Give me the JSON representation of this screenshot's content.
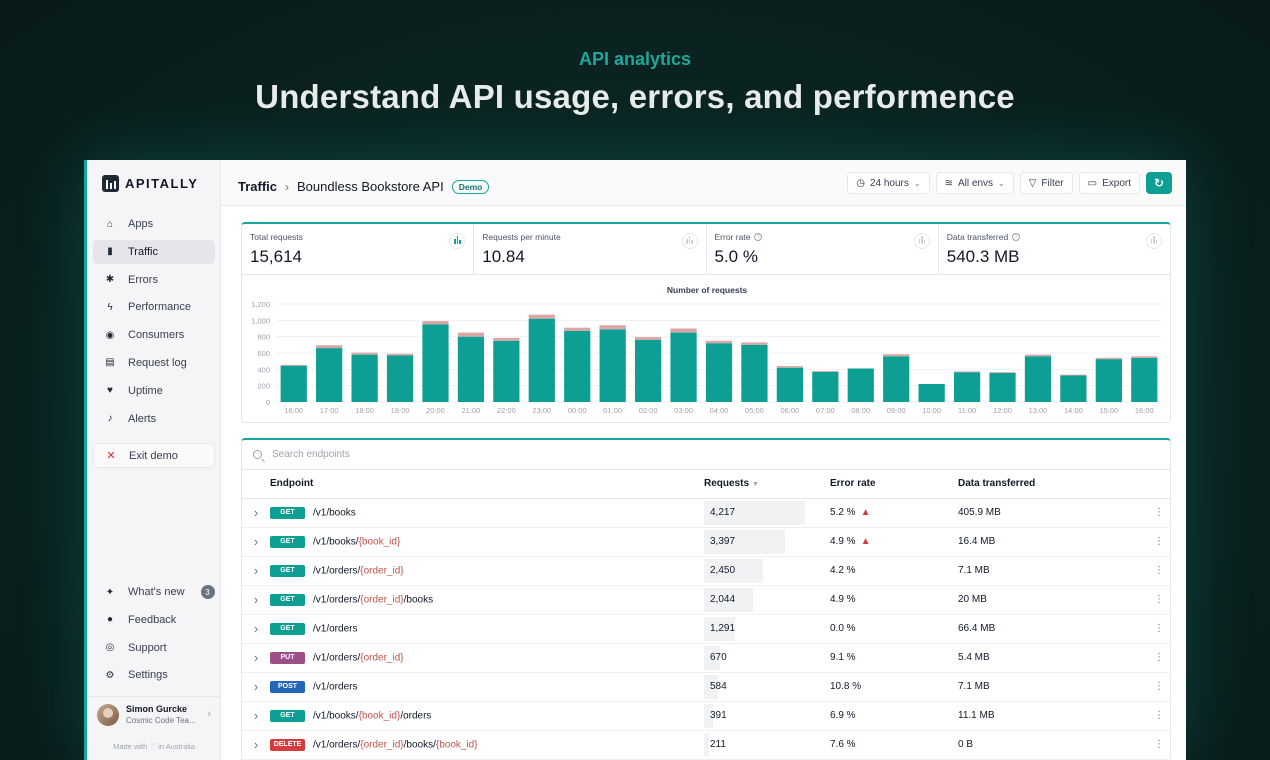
{
  "hero": {
    "kicker": "API analytics",
    "title": "Understand API usage, errors, and performence"
  },
  "sidebar": {
    "logo_text": "APITALLY",
    "items": [
      {
        "label": "Apps",
        "icon": "home-icon",
        "glyph": "⌂",
        "active": false
      },
      {
        "label": "Traffic",
        "icon": "bar-chart-icon",
        "glyph": "▮",
        "active": true
      },
      {
        "label": "Errors",
        "icon": "bug-icon",
        "glyph": "✱",
        "active": false
      },
      {
        "label": "Performance",
        "icon": "bolt-icon",
        "glyph": "ϟ",
        "active": false
      },
      {
        "label": "Consumers",
        "icon": "fingerprint-icon",
        "glyph": "◉",
        "active": false
      },
      {
        "label": "Request log",
        "icon": "scroll-icon",
        "glyph": "▤",
        "active": false
      },
      {
        "label": "Uptime",
        "icon": "heartbeat-icon",
        "glyph": "♥",
        "active": false
      },
      {
        "label": "Alerts",
        "icon": "bell-icon",
        "glyph": "♪",
        "active": false
      }
    ],
    "exit_label": "Exit demo",
    "bottom_items": [
      {
        "label": "What's new",
        "icon": "sparkles-icon",
        "glyph": "✦",
        "badge": "3"
      },
      {
        "label": "Feedback",
        "icon": "chat-icon",
        "glyph": "●",
        "badge": ""
      },
      {
        "label": "Support",
        "icon": "lifebuoy-icon",
        "glyph": "◎",
        "badge": ""
      },
      {
        "label": "Settings",
        "icon": "gear-icon",
        "glyph": "⚙",
        "badge": ""
      }
    ],
    "user_name": "Simon Gurcke",
    "user_team": "Cosmic Code Tea...",
    "made_with": "Made with ♡ in Australia"
  },
  "header": {
    "breadcrumb_root": "Traffic",
    "breadcrumb_sep": "›",
    "app_name": "Boundless Bookstore API",
    "demo_badge": "Demo",
    "period_label": "24 hours",
    "env_label": "All envs",
    "filter_label": "Filter",
    "export_label": "Export"
  },
  "metrics": [
    {
      "label": "Total requests",
      "value": "15,614",
      "info": false,
      "active": true
    },
    {
      "label": "Requests per minute",
      "value": "10.84",
      "info": false,
      "active": false
    },
    {
      "label": "Error rate",
      "value": "5.0 %",
      "info": true,
      "active": false
    },
    {
      "label": "Data transferred",
      "value": "540.3 MB",
      "info": true,
      "active": false
    }
  ],
  "chart_data": {
    "type": "bar",
    "title": "Number of requests",
    "categories": [
      "16:00",
      "17:00",
      "18:00",
      "19:00",
      "20:00",
      "21:00",
      "22:00",
      "23:00",
      "00:00",
      "01:00",
      "02:00",
      "03:00",
      "04:00",
      "05:00",
      "06:00",
      "07:00",
      "08:00",
      "09:00",
      "10:00",
      "11:00",
      "12:00",
      "13:00",
      "14:00",
      "15:00",
      "16:00"
    ],
    "series": [
      {
        "values": [
          445,
          660,
          580,
          570,
          950,
          800,
          750,
          1020,
          870,
          890,
          760,
          850,
          720,
          700,
          420,
          370,
          410,
          560,
          220,
          365,
          355,
          560,
          325,
          525,
          540
        ]
      },
      {
        "values": [
          10,
          35,
          25,
          20,
          40,
          50,
          35,
          50,
          40,
          50,
          35,
          50,
          30,
          30,
          20,
          10,
          0,
          25,
          0,
          10,
          10,
          20,
          10,
          15,
          20
        ]
      }
    ],
    "colors": [
      "#0e9f94",
      "#d9a5a5"
    ],
    "stacked": true,
    "ylim": [
      0,
      1200
    ],
    "yticks": [
      0,
      200,
      400,
      600,
      800,
      1000,
      1200
    ],
    "ytick_labels": [
      "0",
      "200",
      "400",
      "600",
      "800",
      "1,000",
      "1,200"
    ],
    "grid": true
  },
  "endpoints": {
    "search_placeholder": "Search endpoints",
    "columns": {
      "endpoint": "Endpoint",
      "requests": "Requests",
      "error_rate": "Error rate",
      "data": "Data transferred"
    },
    "max_requests": 4217,
    "rows": [
      {
        "method": "GET",
        "path": [
          [
            "/v1/books",
            false
          ]
        ],
        "requests": "4,217",
        "req_num": 4217,
        "error_rate": "5.2 %",
        "warn": true,
        "data": "405.9 MB"
      },
      {
        "method": "GET",
        "path": [
          [
            "/v1/books/",
            false
          ],
          [
            "{book_id}",
            true
          ]
        ],
        "requests": "3,397",
        "req_num": 3397,
        "error_rate": "4.9 %",
        "warn": true,
        "data": "16.4 MB"
      },
      {
        "method": "GET",
        "path": [
          [
            "/v1/orders/",
            false
          ],
          [
            "{order_id}",
            true
          ]
        ],
        "requests": "2,450",
        "req_num": 2450,
        "error_rate": "4.2 %",
        "warn": false,
        "data": "7.1 MB"
      },
      {
        "method": "GET",
        "path": [
          [
            "/v1/orders/",
            false
          ],
          [
            "{order_id}",
            true
          ],
          [
            "/books",
            false
          ]
        ],
        "requests": "2,044",
        "req_num": 2044,
        "error_rate": "4.9 %",
        "warn": false,
        "data": "20 MB"
      },
      {
        "method": "GET",
        "path": [
          [
            "/v1/orders",
            false
          ]
        ],
        "requests": "1,291",
        "req_num": 1291,
        "error_rate": "0.0 %",
        "warn": false,
        "data": "66.4 MB"
      },
      {
        "method": "PUT",
        "path": [
          [
            "/v1/orders/",
            false
          ],
          [
            "{order_id}",
            true
          ]
        ],
        "requests": "670",
        "req_num": 670,
        "error_rate": "9.1 %",
        "warn": false,
        "data": "5.4 MB"
      },
      {
        "method": "POST",
        "path": [
          [
            "/v1/orders",
            false
          ]
        ],
        "requests": "584",
        "req_num": 584,
        "error_rate": "10.8 %",
        "warn": false,
        "data": "7.1 MB"
      },
      {
        "method": "GET",
        "path": [
          [
            "/v1/books/",
            false
          ],
          [
            "{book_id}",
            true
          ],
          [
            "/orders",
            false
          ]
        ],
        "requests": "391",
        "req_num": 391,
        "error_rate": "6.9 %",
        "warn": false,
        "data": "11.1 MB"
      },
      {
        "method": "DELETE",
        "path": [
          [
            "/v1/orders/",
            false
          ],
          [
            "{order_id}",
            true
          ],
          [
            "/books/",
            false
          ],
          [
            "{book_id}",
            true
          ]
        ],
        "requests": "211",
        "req_num": 211,
        "error_rate": "7.6 %",
        "warn": false,
        "data": "0 B"
      }
    ]
  }
}
